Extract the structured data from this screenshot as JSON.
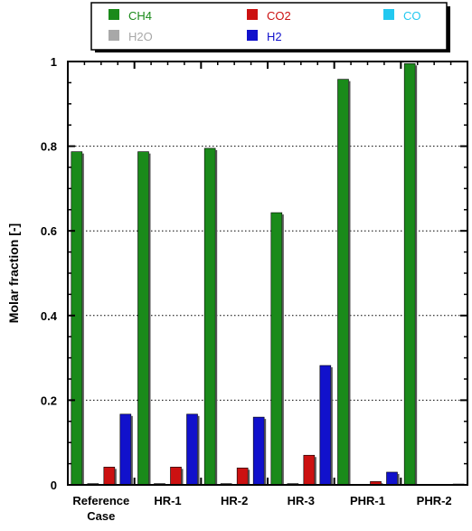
{
  "chart_data": {
    "type": "bar",
    "title": "",
    "xlabel": "",
    "ylabel": "Molar fraction [-]",
    "ylim": [
      0,
      1
    ],
    "yticks": [
      "0",
      "0.2",
      "0.4",
      "0.6",
      "0.8",
      "1"
    ],
    "ytick_values": [
      0,
      0.2,
      0.4,
      0.6,
      0.8,
      1
    ],
    "grid": "horizontal dotted",
    "legend_placement": "top, above plot",
    "categories": [
      {
        "line1": "Reference",
        "line2": "Case"
      },
      {
        "line1": "HR-1",
        "line2": ""
      },
      {
        "line1": "HR-2",
        "line2": ""
      },
      {
        "line1": "HR-3",
        "line2": ""
      },
      {
        "line1": "PHR-1",
        "line2": ""
      },
      {
        "line1": "PHR-2",
        "line2": ""
      }
    ],
    "series": [
      {
        "name": "CH4",
        "color": "#1a8a1a",
        "values": [
          0.787,
          0.787,
          0.795,
          0.643,
          0.958,
          0.995
        ]
      },
      {
        "name": "H2O",
        "color": "#a8a8a8",
        "values": [
          0.003,
          0.003,
          0.003,
          0.003,
          0.001,
          0.0
        ]
      },
      {
        "name": "CO2",
        "color": "#cc1111",
        "values": [
          0.042,
          0.042,
          0.04,
          0.07,
          0.008,
          0.001
        ]
      },
      {
        "name": "H2",
        "color": "#1111cc",
        "values": [
          0.167,
          0.167,
          0.16,
          0.282,
          0.03,
          0.002
        ]
      },
      {
        "name": "CO",
        "color": "#22c8f0",
        "values": [
          0.0,
          0.0,
          0.0,
          0.0,
          0.0,
          0.0
        ]
      }
    ],
    "legend_order": [
      "CH4",
      "CO2",
      "CO",
      "H2O",
      "H2"
    ]
  }
}
